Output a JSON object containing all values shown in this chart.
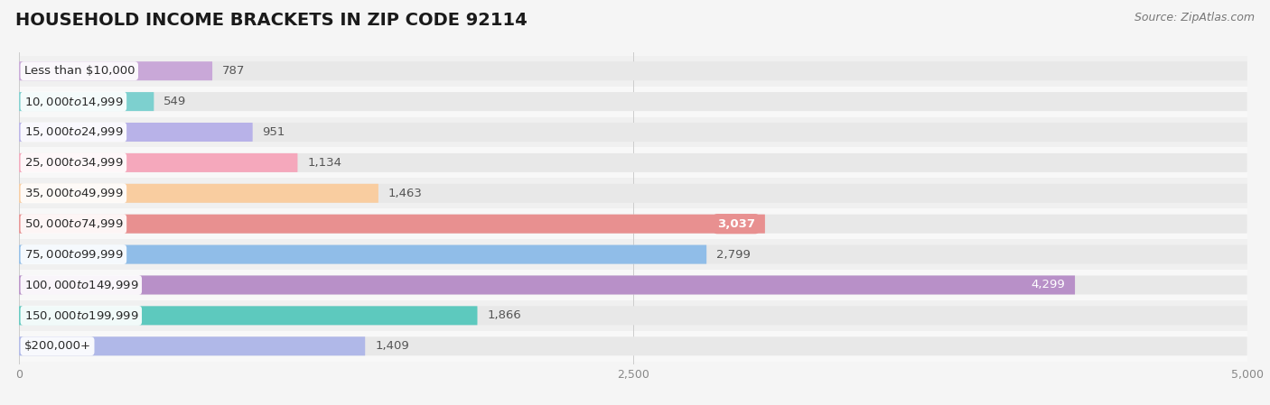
{
  "title": "HOUSEHOLD INCOME BRACKETS IN ZIP CODE 92114",
  "source": "Source: ZipAtlas.com",
  "categories": [
    "Less than $10,000",
    "$10,000 to $14,999",
    "$15,000 to $24,999",
    "$25,000 to $34,999",
    "$35,000 to $49,999",
    "$50,000 to $74,999",
    "$75,000 to $99,999",
    "$100,000 to $149,999",
    "$150,000 to $199,999",
    "$200,000+"
  ],
  "values": [
    787,
    549,
    951,
    1134,
    1463,
    3037,
    2799,
    4299,
    1866,
    1409
  ],
  "bar_colors": [
    "#c9a8d8",
    "#7dd0cf",
    "#b8b2e8",
    "#f5a8bc",
    "#f9cda0",
    "#e89090",
    "#90bde8",
    "#b890c8",
    "#5dc9be",
    "#b0b8e8"
  ],
  "value_labels": [
    "787",
    "549",
    "951",
    "1,134",
    "1,463",
    "3,037",
    "2,799",
    "4,299",
    "1,866",
    "1,409"
  ],
  "value_inside": [
    false,
    false,
    false,
    false,
    false,
    true,
    false,
    true,
    false,
    false
  ],
  "value_bubble": [
    false,
    false,
    false,
    false,
    false,
    true,
    false,
    false,
    false,
    false
  ],
  "xlim": [
    0,
    5000
  ],
  "xticks": [
    0,
    2500,
    5000
  ],
  "background_color": "#f5f5f5",
  "bar_bg_color": "#e8e8e8",
  "title_fontsize": 14,
  "label_fontsize": 9.5,
  "value_fontsize": 9.5,
  "source_fontsize": 9,
  "bar_height": 0.62,
  "bar_rounding": 0.06
}
